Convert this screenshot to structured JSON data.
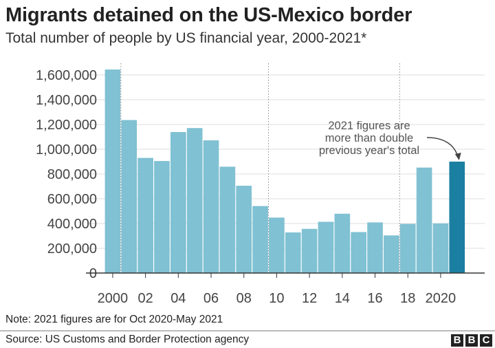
{
  "title": "Migrants detained on the US-Mexico border",
  "subtitle": "Total number of people by US financial year, 2000-2021*",
  "note": "Note: 2021 figures are for Oct 2020-May 2021",
  "source": "Source: US Customs and Border Protection agency",
  "logo": [
    "B",
    "B",
    "C"
  ],
  "chart_data": {
    "type": "bar",
    "title": "Migrants detained on the US-Mexico border",
    "subtitle": "Total number of people by US financial year, 2000-2021*",
    "xlabel": "",
    "ylabel": "",
    "categories": [
      2000,
      2001,
      2002,
      2003,
      2004,
      2005,
      2006,
      2007,
      2008,
      2009,
      2010,
      2011,
      2012,
      2013,
      2014,
      2015,
      2016,
      2017,
      2018,
      2019,
      2020,
      2021
    ],
    "values": [
      1644000,
      1236000,
      930000,
      905000,
      1139000,
      1171000,
      1072000,
      859000,
      705000,
      541000,
      448000,
      328000,
      357000,
      414000,
      479000,
      331000,
      409000,
      304000,
      397000,
      852000,
      401000,
      900000
    ],
    "highlight": 2021,
    "ylim": [
      0,
      1600000
    ],
    "yticks": [
      0,
      200000,
      400000,
      600000,
      800000,
      1000000,
      1200000,
      1400000,
      1600000
    ],
    "ytick_labels": [
      "0",
      "200,000",
      "400,000",
      "600,000",
      "800,000",
      "1,000,000",
      "1,200,000",
      "1,400,000",
      "1,600,000"
    ],
    "xticks": [
      2000,
      2002,
      2004,
      2006,
      2008,
      2010,
      2012,
      2014,
      2016,
      2018,
      2020
    ],
    "xtick_labels": [
      "2000",
      "02",
      "04",
      "06",
      "08",
      "10",
      "12",
      "14",
      "16",
      "18",
      "2020"
    ],
    "vertical_markers": [
      2000.5,
      2009.5,
      2017.5
    ],
    "grid": true,
    "annotation": {
      "lines": [
        "2021 figures are",
        "more than double",
        "previous year's total"
      ],
      "target": 2021
    },
    "colors": {
      "bar": "#80c1d3",
      "highlight": "#1b7fa1",
      "grid": "#dddddd",
      "axis": "#333333",
      "text": "#444444"
    }
  }
}
